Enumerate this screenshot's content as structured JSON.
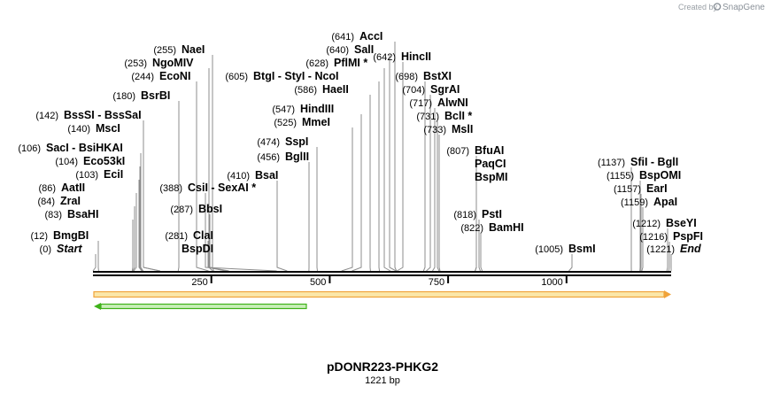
{
  "credit": {
    "prefix": "Created by",
    "brand": "SnapGene"
  },
  "map": {
    "title": "pDONR223-PHKG2",
    "subtitle": "1221 bp",
    "length": 1221,
    "ticks": [
      {
        "label": "250",
        "pos": 250
      },
      {
        "label": "500",
        "pos": 500
      },
      {
        "label": "750",
        "pos": 750
      },
      {
        "label": "1000",
        "pos": 1000
      }
    ]
  },
  "features": [
    {
      "name": "orange-feature",
      "start": 0,
      "end": 1221,
      "direction": "forward",
      "color": "#f5a623"
    },
    {
      "name": "green-feature",
      "start": 0,
      "end": 453,
      "direction": "reverse",
      "color": "#3fb21a"
    }
  ],
  "sites": [
    {
      "pos_label": "(0)",
      "name": "Start",
      "site": 0,
      "italic": true
    },
    {
      "pos_label": "(12)",
      "name": "BmgBI",
      "site": 12
    },
    {
      "pos_label": "(83)",
      "name": "BsaHI",
      "site": 83
    },
    {
      "pos_label": "(84)",
      "name": "ZraI",
      "site": 84
    },
    {
      "pos_label": "(86)",
      "name": "AatII",
      "site": 86
    },
    {
      "pos_label": "(103)",
      "name": "EciI",
      "site": 103
    },
    {
      "pos_label": "(104)",
      "name": "Eco53kI",
      "site": 104
    },
    {
      "pos_label": "(106)",
      "name": "SacI  -  BsiHKAI",
      "site": 106
    },
    {
      "pos_label": "(140)",
      "name": "MscI",
      "site": 140
    },
    {
      "pos_label": "(142)",
      "name": "BssSI  -  BssSaI",
      "site": 142
    },
    {
      "pos_label": "(180)",
      "name": "BsrBI",
      "site": 180
    },
    {
      "pos_label": "(244)",
      "name": "EcoNI",
      "site": 244
    },
    {
      "pos_label": "(253)",
      "name": "NgoMIV",
      "site": 253
    },
    {
      "pos_label": "(255)",
      "name": "NaeI",
      "site": 255
    },
    {
      "pos_label": "(281)",
      "name": "ClaI",
      "site": 281
    },
    {
      "pos_label": "",
      "name": "BspDI",
      "site": 281
    },
    {
      "pos_label": "(287)",
      "name": "BbsI",
      "site": 287
    },
    {
      "pos_label": "(388)",
      "name": "CsiI  -  SexAI *",
      "site": 388
    },
    {
      "pos_label": "(410)",
      "name": "BsaI",
      "site": 410
    },
    {
      "pos_label": "(456)",
      "name": "BglII",
      "site": 456
    },
    {
      "pos_label": "(474)",
      "name": "SspI",
      "site": 474
    },
    {
      "pos_label": "(525)",
      "name": "MmeI",
      "site": 525
    },
    {
      "pos_label": "(547)",
      "name": "HindIII",
      "site": 547
    },
    {
      "pos_label": "(586)",
      "name": "HaeII",
      "site": 586
    },
    {
      "pos_label": "(605)",
      "name": "BtgI  -  StyI  -  NcoI",
      "site": 605
    },
    {
      "pos_label": "(628)",
      "name": "PflMI *",
      "site": 628
    },
    {
      "pos_label": "(640)",
      "name": "SalI",
      "site": 640
    },
    {
      "pos_label": "(641)",
      "name": "AccI",
      "site": 641
    },
    {
      "pos_label": "(642)",
      "name": "HincII",
      "site": 642
    },
    {
      "pos_label": "(698)",
      "name": "BstXI",
      "site": 698
    },
    {
      "pos_label": "(704)",
      "name": "SgrAI",
      "site": 704
    },
    {
      "pos_label": "(717)",
      "name": "AlwNI",
      "site": 717
    },
    {
      "pos_label": "(731)",
      "name": "BclI *",
      "site": 731
    },
    {
      "pos_label": "(733)",
      "name": "MslI",
      "site": 733
    },
    {
      "pos_label": "(807)",
      "name": "BfuAI",
      "site": 807
    },
    {
      "pos_label": "",
      "name": "PaqCI",
      "site": 807
    },
    {
      "pos_label": "",
      "name": "BspMI",
      "site": 807
    },
    {
      "pos_label": "(818)",
      "name": "PstI",
      "site": 818
    },
    {
      "pos_label": "(822)",
      "name": "BamHI",
      "site": 822
    },
    {
      "pos_label": "(1005)",
      "name": "BsmI",
      "site": 1005
    },
    {
      "pos_label": "(1137)",
      "name": "SfiI  -  BglI",
      "site": 1137
    },
    {
      "pos_label": "(1155)",
      "name": "BspOMI",
      "site": 1155
    },
    {
      "pos_label": "(1157)",
      "name": "EarI",
      "site": 1157
    },
    {
      "pos_label": "(1159)",
      "name": "ApaI",
      "site": 1159
    },
    {
      "pos_label": "(1212)",
      "name": "BseYI",
      "site": 1212
    },
    {
      "pos_label": "(1216)",
      "name": "PspFI",
      "site": 1216
    },
    {
      "pos_label": "(1221)",
      "name": "End",
      "site": 1221,
      "italic": true
    }
  ]
}
